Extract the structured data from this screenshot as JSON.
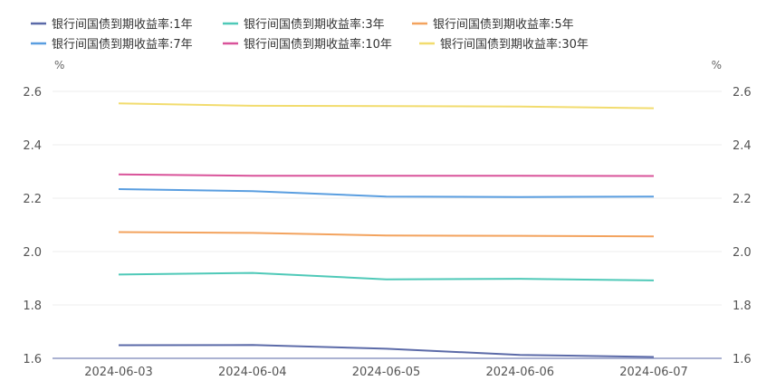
{
  "chart_data": {
    "type": "line",
    "categories": [
      "2024-06-03",
      "2024-06-04",
      "2024-06-05",
      "2024-06-06",
      "2024-06-07"
    ],
    "y_unit_left": "%",
    "y_unit_right": "%",
    "ylim": [
      1.6,
      2.6
    ],
    "yticks": [
      1.6,
      1.8,
      2.0,
      2.2,
      2.4,
      2.6
    ],
    "ytick_labels": [
      "1.6",
      "1.8",
      "2.0",
      "2.2",
      "2.4",
      "2.6"
    ],
    "grid": true,
    "legend_position": "top-left",
    "series": [
      {
        "name": "银行间国债到期收益率:1年",
        "color": "#5b6aa8",
        "values": [
          1.649,
          1.65,
          1.636,
          1.613,
          1.605
        ]
      },
      {
        "name": "银行间国债到期收益率:3年",
        "color": "#4fc9b8",
        "values": [
          1.914,
          1.92,
          1.896,
          1.898,
          1.892
        ]
      },
      {
        "name": "银行间国债到期收益率:5年",
        "color": "#f3a35e",
        "values": [
          2.073,
          2.07,
          2.06,
          2.059,
          2.057
        ]
      },
      {
        "name": "银行间国债到期收益率:7年",
        "color": "#5a9ee0",
        "values": [
          2.234,
          2.226,
          2.206,
          2.204,
          2.206
        ]
      },
      {
        "name": "银行间国债到期收益率:10年",
        "color": "#d9539a",
        "values": [
          2.289,
          2.284,
          2.284,
          2.284,
          2.283
        ]
      },
      {
        "name": "银行间国债到期收益率:30年",
        "color": "#f2dc6e",
        "values": [
          2.555,
          2.546,
          2.545,
          2.543,
          2.537
        ]
      }
    ]
  }
}
